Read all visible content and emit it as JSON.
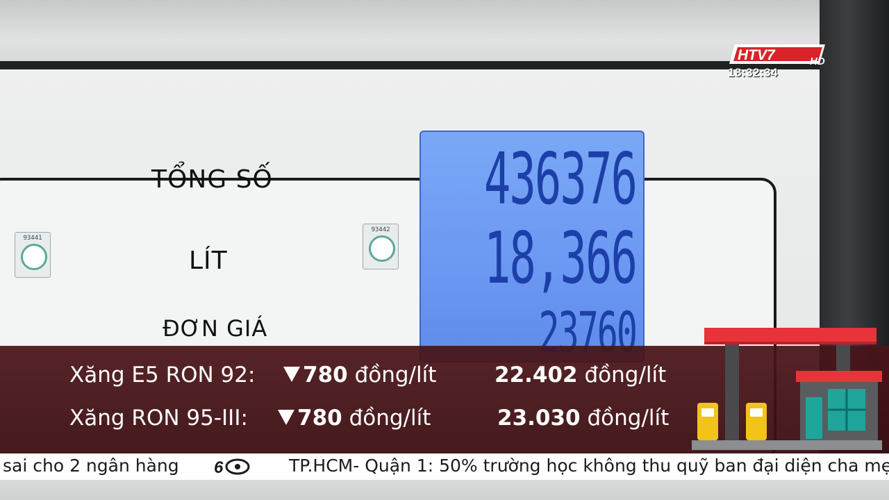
{
  "broadcast": {
    "channel_logo": "HTV7",
    "channel_logo_suffix": "HD",
    "clock": "18:32:34"
  },
  "pump": {
    "labels": {
      "total": "TỔNG SỐ",
      "liters": "LÍT",
      "unit_price": "ĐƠN GIÁ"
    },
    "display": {
      "total": "436376",
      "liters": "18,366",
      "unit_price": "23760"
    },
    "stickers": [
      {
        "number": "93441"
      },
      {
        "number": "93442"
      }
    ]
  },
  "fuel_prices": [
    {
      "name": "Xăng E5 RON 92:",
      "change": "780",
      "change_unit": "đồng/lít",
      "direction": "down",
      "price": "22.402",
      "price_unit": "đồng/lít"
    },
    {
      "name": "Xăng RON 95-III:",
      "change": "780",
      "change_unit": "đồng/lít",
      "direction": "down",
      "price": "23.030",
      "price_unit": "đồng/lít"
    }
  ],
  "ticker": {
    "left_text": "sai cho 2 ngân hàng",
    "right_text": "TP.HCM- Quận 1: 50% trường học không thu quỹ ban đại diện cha mẹ"
  },
  "icons": {
    "logo": "htv7-logo-icon",
    "station": "gas-station-icon",
    "ticker_separator": "htv-60-logo-icon",
    "down": "down-triangle-icon"
  },
  "colors": {
    "lower_third_bg": "#4a1418",
    "lcd_bg": "#7aa8f6",
    "lcd_digits": "#1d3fa8",
    "station_roof": "#e8333a",
    "logo_red": "#d8232a"
  }
}
